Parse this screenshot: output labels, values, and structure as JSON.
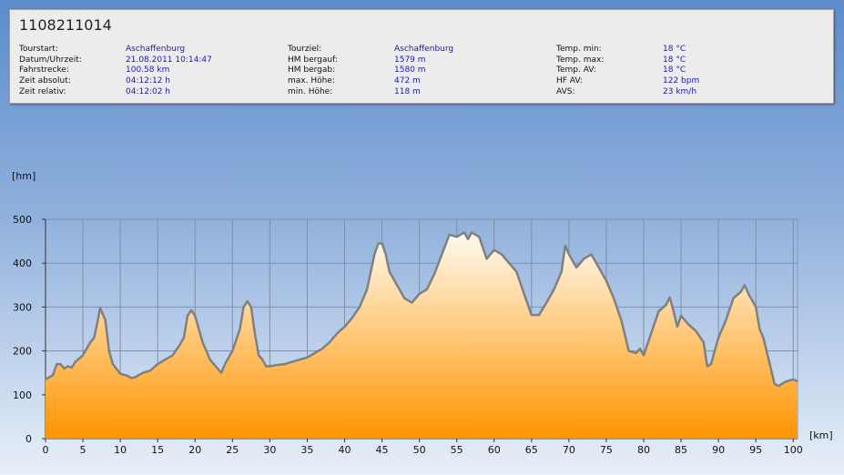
{
  "header": {
    "title": "1108211014",
    "columns": [
      [
        {
          "label": "Tourstart:",
          "value": "Aschaffenburg"
        },
        {
          "label": "Datum/Uhrzeit:",
          "value": "21.08.2011 10:14:47"
        },
        {
          "label": "Fahrstrecke:",
          "value": "100.58 km"
        },
        {
          "label": "Zeit absolut:",
          "value": "04:12:12 h"
        },
        {
          "label": "Zeit relativ:",
          "value": "04:12:02 h"
        }
      ],
      [
        {
          "label": "Tourziel:",
          "value": "Aschaffenburg"
        },
        {
          "label": "HM bergauf:",
          "value": "1579 m"
        },
        {
          "label": "HM bergab:",
          "value": "1580 m"
        },
        {
          "label": "max. Höhe:",
          "value": "472 m"
        },
        {
          "label": "min. Höhe:",
          "value": "118 m"
        }
      ],
      [
        {
          "label": "Temp. min:",
          "value": "18 °C"
        },
        {
          "label": "Temp. max:",
          "value": "18 °C"
        },
        {
          "label": "Temp. AV:",
          "value": "18 °C"
        },
        {
          "label": "HF AV:",
          "value": "122 bpm"
        },
        {
          "label": "AVS:",
          "value": "23 km/h"
        }
      ]
    ]
  },
  "chart_data": {
    "type": "area",
    "x_label": "[km]",
    "y_label": "[hm]",
    "color": "#ff9400",
    "line_color": "#808080",
    "grid": true,
    "xlim": [
      0,
      100.58
    ],
    "ylim": [
      0,
      500
    ],
    "xticks": [
      0,
      5,
      10,
      15,
      20,
      25,
      30,
      35,
      40,
      45,
      50,
      55,
      60,
      65,
      70,
      75,
      80,
      85,
      90,
      95,
      100
    ],
    "yticks": [
      0,
      100,
      200,
      300,
      400,
      500
    ],
    "x": [
      0,
      1,
      1.5,
      2,
      2.5,
      3,
      3.5,
      4,
      5,
      6,
      6.5,
      7,
      7.3,
      8,
      8.5,
      9,
      10,
      11,
      11.5,
      12,
      13,
      14,
      15,
      16,
      17,
      18,
      18.5,
      19,
      19.5,
      20,
      21,
      22,
      23,
      23.5,
      24,
      25,
      26,
      26.5,
      27,
      27.5,
      28,
      28.5,
      29,
      29.5,
      30,
      31,
      32,
      33,
      34,
      35,
      36,
      37,
      38,
      39,
      40,
      41,
      42,
      43,
      44,
      44.5,
      45,
      45.5,
      46,
      47,
      48,
      49,
      50,
      51,
      52,
      53,
      54,
      55,
      56,
      56.5,
      57,
      58,
      59,
      60,
      61,
      62,
      63,
      64,
      65,
      66,
      67,
      68,
      69,
      69.5,
      70,
      71,
      72,
      73,
      74,
      75,
      76,
      77,
      78,
      79,
      79.5,
      80,
      81,
      82,
      83,
      83.5,
      84,
      84.5,
      85,
      86,
      87,
      88,
      88.5,
      89,
      90,
      91,
      92,
      93,
      93.5,
      94,
      95,
      95.5,
      96,
      97,
      97.5,
      98,
      99,
      100,
      100.58
    ],
    "values": [
      135,
      145,
      170,
      170,
      160,
      165,
      162,
      175,
      190,
      220,
      230,
      270,
      298,
      270,
      200,
      170,
      148,
      143,
      138,
      140,
      150,
      155,
      170,
      180,
      190,
      215,
      230,
      280,
      293,
      280,
      220,
      180,
      160,
      150,
      170,
      200,
      250,
      300,
      313,
      300,
      240,
      190,
      180,
      165,
      165,
      168,
      170,
      175,
      180,
      185,
      195,
      205,
      220,
      240,
      255,
      275,
      300,
      340,
      420,
      445,
      445,
      420,
      380,
      350,
      320,
      310,
      330,
      340,
      375,
      420,
      465,
      460,
      470,
      455,
      470,
      460,
      410,
      430,
      420,
      400,
      380,
      330,
      282,
      282,
      310,
      340,
      380,
      440,
      420,
      390,
      410,
      420,
      390,
      360,
      320,
      270,
      200,
      195,
      205,
      190,
      240,
      290,
      305,
      322,
      290,
      255,
      280,
      260,
      245,
      220,
      165,
      170,
      230,
      270,
      320,
      335,
      350,
      330,
      300,
      250,
      230,
      160,
      125,
      120,
      130,
      135,
      130
    ]
  }
}
